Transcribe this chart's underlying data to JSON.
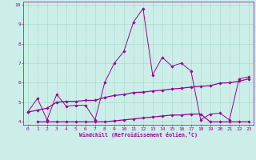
{
  "xlabel": "Windchill (Refroidissement éolien,°C)",
  "xlim": [
    -0.5,
    23.5
  ],
  "ylim": [
    3.85,
    10.15
  ],
  "yticks": [
    4,
    5,
    6,
    7,
    8,
    9,
    10
  ],
  "xticks": [
    0,
    1,
    2,
    3,
    4,
    5,
    6,
    7,
    8,
    9,
    10,
    11,
    12,
    13,
    14,
    15,
    16,
    17,
    18,
    19,
    20,
    21,
    22,
    23
  ],
  "background_color": "#cceee8",
  "grid_color": "#aaddcc",
  "line_color": "#990099",
  "line1_x": [
    0,
    1,
    2,
    3,
    4,
    5,
    6,
    7,
    8,
    9,
    10,
    11,
    12,
    13,
    14,
    15,
    16,
    17,
    18,
    19,
    20,
    21,
    22,
    23
  ],
  "line1_y": [
    4.5,
    5.2,
    4.1,
    5.4,
    4.8,
    4.85,
    4.85,
    4.1,
    6.0,
    7.0,
    7.6,
    9.1,
    9.8,
    6.4,
    7.3,
    6.85,
    7.0,
    6.6,
    4.1,
    4.4,
    4.45,
    4.1,
    6.2,
    6.3
  ],
  "line2_x": [
    1,
    2,
    3,
    4,
    5,
    6,
    7,
    8,
    9,
    10,
    11,
    12,
    13,
    14,
    15,
    16,
    17,
    18,
    19,
    20,
    21,
    22,
    23
  ],
  "line2_y": [
    4.0,
    4.0,
    4.0,
    4.0,
    4.0,
    4.0,
    4.0,
    4.0,
    4.05,
    4.1,
    4.15,
    4.2,
    4.25,
    4.3,
    4.35,
    4.35,
    4.4,
    4.4,
    4.0,
    4.0,
    4.0,
    4.0,
    4.0
  ],
  "line3_x": [
    0,
    1,
    2,
    3,
    4,
    5,
    6,
    7,
    8,
    9,
    10,
    11,
    12,
    13,
    14,
    15,
    16,
    17,
    18,
    19,
    20,
    21,
    22,
    23
  ],
  "line3_y": [
    4.5,
    4.6,
    4.7,
    5.0,
    5.05,
    5.05,
    5.1,
    5.1,
    5.25,
    5.35,
    5.4,
    5.5,
    5.52,
    5.58,
    5.62,
    5.68,
    5.72,
    5.78,
    5.82,
    5.85,
    5.98,
    6.0,
    6.08,
    6.2
  ]
}
